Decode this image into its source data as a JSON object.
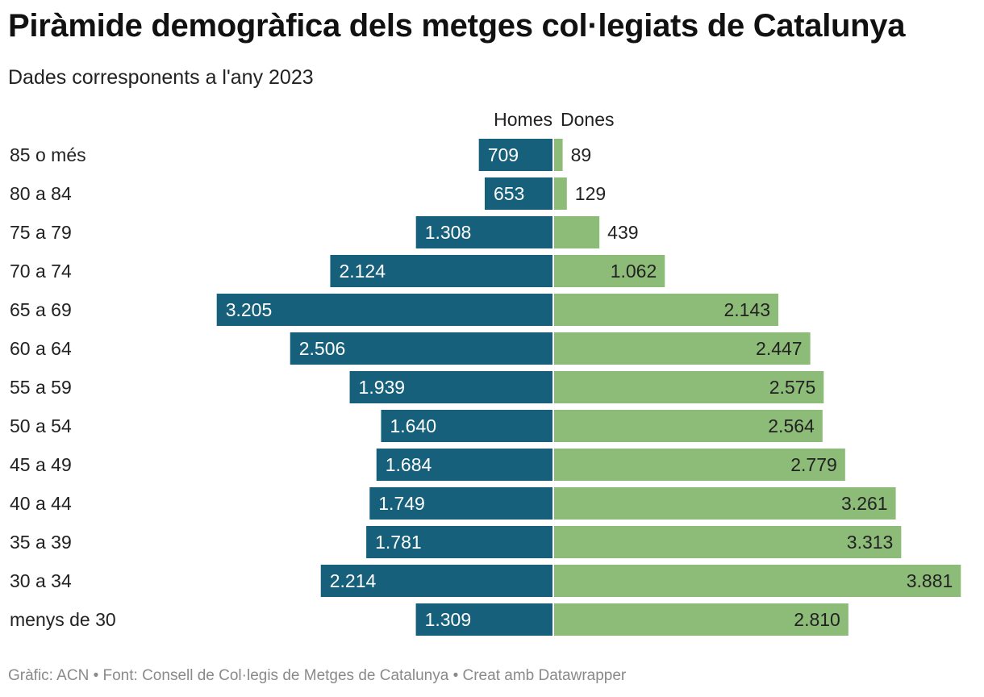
{
  "title": "Piràmide demogràfica dels metges col·legiats de Catalunya",
  "subtitle": "Dades corresponents a l'any 2023",
  "footer": "Gràfic: ACN • Font: Consell de Col·legis de Metges de Catalunya • Creat amb Datawrapper",
  "colors": {
    "men": "#17607b",
    "women": "#8dbb78",
    "divider": "#ffffff"
  },
  "chart_data": {
    "type": "bar",
    "orientation": "horizontal-diverging",
    "title": "Piràmide demogràfica dels metges col·legiats de Catalunya",
    "subtitle": "Dades corresponents a l'any 2023",
    "categories": [
      "85 o més",
      "80 a 84",
      "75 a 79",
      "70 a 74",
      "65 a 69",
      "60 a 64",
      "55 a 59",
      "50 a 54",
      "45 a 49",
      "40 a 44",
      "35 a 39",
      "30 a 34",
      "menys de 30"
    ],
    "series": [
      {
        "name": "Homes",
        "values": [
          709,
          653,
          1308,
          2124,
          3205,
          2506,
          1939,
          1640,
          1684,
          1749,
          1781,
          2214,
          1309
        ],
        "labels": [
          "709",
          "653",
          "1.308",
          "2.124",
          "3.205",
          "2.506",
          "1.939",
          "1.640",
          "1.684",
          "1.749",
          "1.781",
          "2.214",
          "1.309"
        ]
      },
      {
        "name": "Dones",
        "values": [
          89,
          129,
          439,
          1062,
          2143,
          2447,
          2575,
          2564,
          2779,
          3261,
          3313,
          3881,
          2810
        ],
        "labels": [
          "89",
          "129",
          "439",
          "1.062",
          "2.143",
          "2.447",
          "2.575",
          "2.564",
          "2.779",
          "3.261",
          "3.313",
          "3.881",
          "2.810"
        ]
      }
    ],
    "legend": "top-center",
    "grid": false
  }
}
